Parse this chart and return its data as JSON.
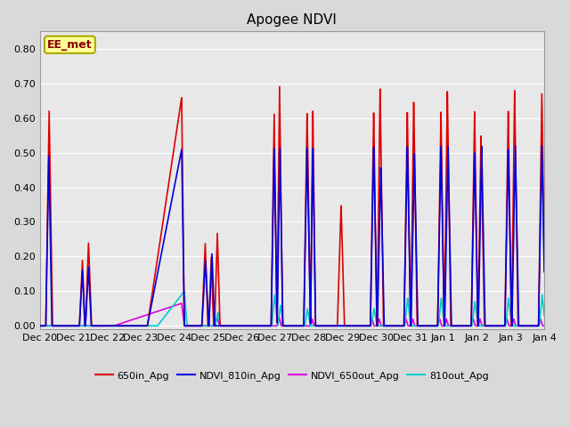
{
  "title": "Apogee NDVI",
  "bg_color": "#d9d9d9",
  "plot_bg_color": "#e8e8e8",
  "annotation_text": "EE_met",
  "annotation_fg": "#880000",
  "annotation_bg": "#ffff99",
  "annotation_border": "#aaaa00",
  "ylim": [
    -0.01,
    0.85
  ],
  "yticks": [
    0.0,
    0.1,
    0.2,
    0.3,
    0.4,
    0.5,
    0.6,
    0.7,
    0.8
  ],
  "x_labels": [
    "Dec 20",
    "Dec 21",
    "Dec 22",
    "Dec 23",
    "Dec 24",
    "Dec 25",
    "Dec 26",
    "Dec 27",
    "Dec 28",
    "Dec 29",
    "Dec 30",
    "Dec 31",
    "Jan 1",
    "Jan 2",
    "Jan 3",
    "Jan 4"
  ],
  "red_color": "#dd0000",
  "blue_color": "#0000dd",
  "magenta_color": "#dd00dd",
  "cyan_color": "#00cccc",
  "lw": 1.2,
  "grid_color": "#ffffff"
}
